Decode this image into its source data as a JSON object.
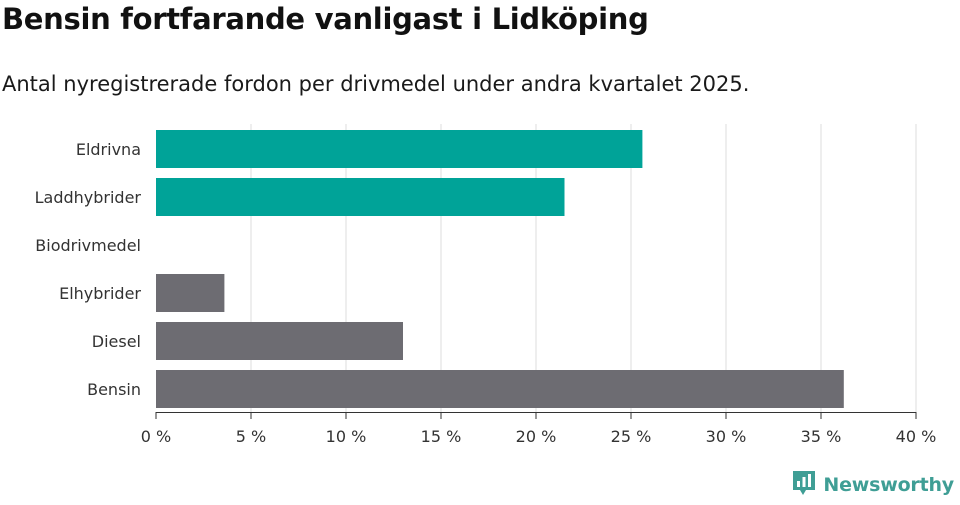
{
  "title": "Bensin fortfarande vanligast i Lidköping",
  "subtitle": "Antal nyregistrerade fordon per drivmedel under andra kvartalet 2025.",
  "logo": {
    "text": "Newsworthy",
    "icon": "newsworthy-chart-icon"
  },
  "colors": {
    "highlight": "#00a398",
    "default": "#6d6c72",
    "grid": "#dcdcdc",
    "axis": "#333333"
  },
  "chart_data": {
    "type": "bar",
    "orientation": "horizontal",
    "categories": [
      "Eldrivna",
      "Laddhybrider",
      "Biodrivmedel",
      "Elhybrider",
      "Diesel",
      "Bensin"
    ],
    "values": [
      25.6,
      21.5,
      0,
      3.6,
      13.0,
      36.2
    ],
    "highlighted": [
      true,
      true,
      true,
      false,
      false,
      false
    ],
    "xlim": [
      0,
      40
    ],
    "xticks": [
      0,
      5,
      10,
      15,
      20,
      25,
      30,
      35,
      40
    ],
    "tick_format": "{v} %",
    "grid": true
  }
}
